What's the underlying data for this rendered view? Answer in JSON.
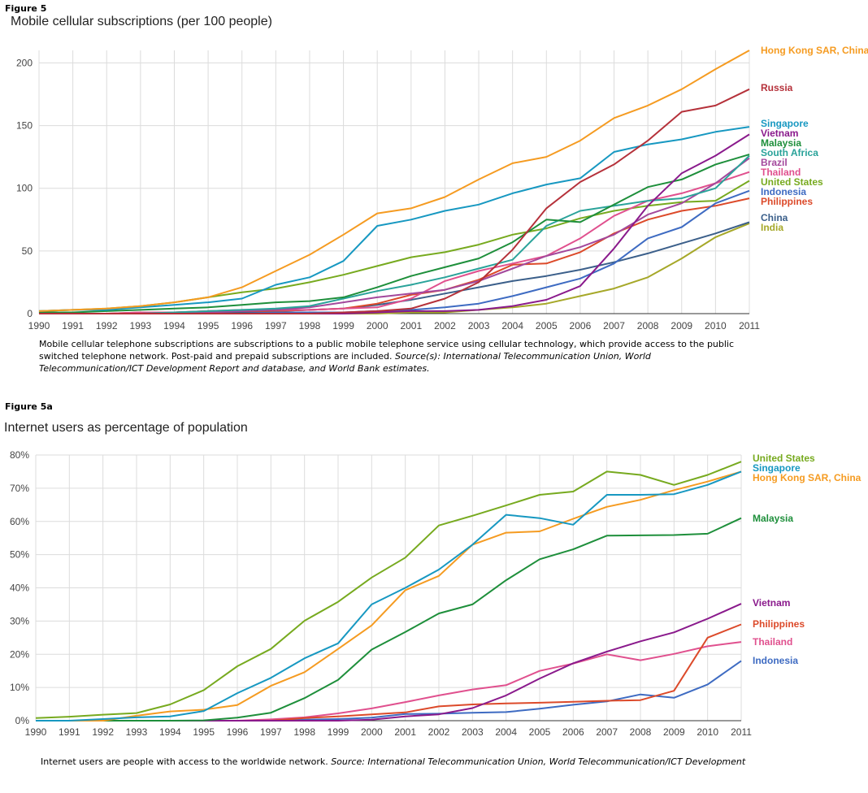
{
  "figure5": {
    "fig_label": "Figure 5",
    "title": "Mobile cellular subscriptions (per 100 people)",
    "note_text": "Mobile cellular telephone subscriptions are subscriptions to a public mobile telephone service using cellular technology, which provide access to the public switched telephone network. Post-paid and prepaid subscriptions are included. ",
    "note_source": "Source(s): International Telecommunication Union, World Telecommunication/ICT Development Report and database, and World Bank estimates."
  },
  "figure5a": {
    "fig_label": "Figure 5a",
    "title": "Internet users as percentage of population",
    "note_text": "Internet users are people with access to the worldwide network. ",
    "note_source": "Source: International Telecommunication Union, World Telecommunication/ICT Development"
  },
  "chart_data": [
    {
      "type": "line",
      "title": "Mobile cellular subscriptions (per 100 people)",
      "xlabel": "",
      "ylabel": "",
      "x": [
        1990,
        1991,
        1992,
        1993,
        1994,
        1995,
        1996,
        1997,
        1998,
        1999,
        2000,
        2001,
        2002,
        2003,
        2004,
        2005,
        2006,
        2007,
        2008,
        2009,
        2010,
        2011
      ],
      "ylim": [
        0,
        210
      ],
      "yticks": [
        0,
        50,
        100,
        150,
        200
      ],
      "ytick_labels": [
        "0",
        "50",
        "100",
        "150",
        "200"
      ],
      "grid": true,
      "legend": "right",
      "series": [
        {
          "name": "Hong Kong SAR, China",
          "color": "#f59b21",
          "values": [
            2,
            3,
            4,
            6,
            9,
            13,
            21,
            34,
            47,
            63,
            80,
            84,
            93,
            107,
            120,
            125,
            138,
            156,
            166,
            179,
            195,
            210
          ]
        },
        {
          "name": "Russia",
          "color": "#b5313a",
          "values": [
            0,
            0,
            0,
            0,
            0,
            0,
            0,
            0,
            0,
            1,
            2,
            4,
            12,
            25,
            51,
            84,
            105,
            119,
            138,
            161,
            166,
            179
          ]
        },
        {
          "name": "Singapore",
          "color": "#1798c1",
          "values": [
            2,
            3,
            3,
            5,
            7,
            9,
            12,
            23,
            29,
            42,
            70,
            75,
            82,
            87,
            96,
            103,
            108,
            129,
            135,
            139,
            145,
            149
          ]
        },
        {
          "name": "Vietnam",
          "color": "#8a1a8c",
          "values": [
            0,
            0,
            0,
            0,
            0,
            0,
            0,
            0,
            0,
            0,
            1,
            2,
            2,
            3,
            6,
            11,
            22,
            52,
            86,
            112,
            126,
            143
          ]
        },
        {
          "name": "Malaysia",
          "color": "#1e8f3b",
          "values": [
            1,
            1,
            2,
            3,
            4,
            5,
            7,
            9,
            10,
            13,
            21,
            30,
            37,
            44,
            57,
            75,
            73,
            87,
            101,
            107,
            119,
            127
          ]
        },
        {
          "name": "South Africa",
          "color": "#2aa39a",
          "values": [
            0,
            0,
            0,
            0,
            1,
            2,
            3,
            4,
            6,
            12,
            18,
            23,
            29,
            36,
            43,
            70,
            82,
            86,
            90,
            92,
            100,
            126
          ]
        },
        {
          "name": "Brazil",
          "color": "#a3489c",
          "values": [
            0,
            0,
            0,
            0,
            1,
            1,
            2,
            3,
            5,
            9,
            13,
            16,
            19,
            26,
            36,
            46,
            53,
            63,
            79,
            88,
            104,
            124
          ]
        },
        {
          "name": "Thailand",
          "color": "#e0508e",
          "values": [
            0,
            0,
            0,
            1,
            1,
            2,
            3,
            3,
            3,
            4,
            5,
            12,
            26,
            34,
            40,
            46,
            60,
            78,
            90,
            96,
            104,
            113
          ]
        },
        {
          "name": "United States",
          "color": "#77aa1f",
          "values": [
            2,
            3,
            4,
            6,
            9,
            13,
            17,
            20,
            25,
            31,
            38,
            45,
            49,
            55,
            63,
            68,
            76,
            82,
            86,
            89,
            90,
            106
          ]
        },
        {
          "name": "Indonesia",
          "color": "#3e6bc2",
          "values": [
            0,
            0,
            0,
            0,
            0,
            0,
            0,
            1,
            1,
            1,
            2,
            3,
            5,
            8,
            14,
            21,
            28,
            40,
            60,
            69,
            88,
            98
          ]
        },
        {
          "name": "Philippines",
          "color": "#dc4a2a",
          "values": [
            0,
            0,
            0,
            1,
            1,
            2,
            2,
            2,
            3,
            4,
            8,
            15,
            19,
            27,
            39,
            40,
            49,
            64,
            75,
            82,
            86,
            92
          ]
        },
        {
          "name": "China",
          "color": "#3b5f8a",
          "values": [
            0,
            0,
            0,
            0,
            0,
            1,
            1,
            2,
            3,
            4,
            7,
            11,
            16,
            21,
            26,
            30,
            35,
            41,
            48,
            56,
            64,
            73
          ]
        },
        {
          "name": "India",
          "color": "#a6a829",
          "values": [
            0,
            0,
            0,
            0,
            0,
            0,
            0,
            0,
            0,
            0,
            0,
            1,
            1,
            3,
            5,
            8,
            14,
            20,
            29,
            44,
            61,
            72
          ]
        }
      ]
    },
    {
      "type": "line",
      "title": "Internet users as percentage of population",
      "xlabel": "",
      "ylabel": "",
      "x": [
        1990,
        1991,
        1992,
        1993,
        1994,
        1995,
        1996,
        1997,
        1998,
        1999,
        2000,
        2001,
        2002,
        2003,
        2004,
        2005,
        2006,
        2007,
        2008,
        2009,
        2010,
        2011
      ],
      "ylim": [
        0,
        80
      ],
      "yticks": [
        0,
        10,
        20,
        30,
        40,
        50,
        60,
        70,
        80
      ],
      "ytick_labels": [
        "0%",
        "10%",
        "20%",
        "30%",
        "40%",
        "50%",
        "60%",
        "70%",
        "80%"
      ],
      "grid": true,
      "legend": "right",
      "series": [
        {
          "name": "United States",
          "color": "#77aa1f",
          "values": [
            0.8,
            1.2,
            1.8,
            2.3,
            4.9,
            9.2,
            16.4,
            21.6,
            30.1,
            35.8,
            43.1,
            49.1,
            58.8,
            61.7,
            64.8,
            68,
            69,
            75,
            74,
            71,
            74,
            78
          ]
        },
        {
          "name": "Singapore",
          "color": "#1798c1",
          "values": [
            0,
            0,
            0.5,
            1,
            1.3,
            2.9,
            8.3,
            12.9,
            18.8,
            23.3,
            35,
            40,
            45.5,
            53,
            62,
            61,
            59,
            68,
            68,
            68.2,
            71,
            75
          ]
        },
        {
          "name": "Hong Kong SAR, China",
          "color": "#f59b21",
          "values": [
            0,
            0,
            0,
            1.5,
            2.8,
            3.3,
            4.7,
            10.5,
            14.6,
            21.6,
            28.7,
            39.3,
            43.6,
            53,
            56.6,
            57,
            60.8,
            64.4,
            66.5,
            69.4,
            72,
            75
          ]
        },
        {
          "name": "Malaysia",
          "color": "#1e8f3b",
          "values": [
            0,
            0,
            0,
            0,
            0,
            0.1,
            0.9,
            2.4,
            6.8,
            12.3,
            21.4,
            26.7,
            32.3,
            35,
            42.3,
            48.6,
            51.6,
            55.7,
            55.8,
            55.9,
            56.3,
            61
          ]
        },
        {
          "name": "Vietnam",
          "color": "#8a1a8c",
          "values": [
            0,
            0,
            0,
            0,
            0,
            0,
            0,
            0,
            0,
            0,
            0.3,
            1.3,
            1.9,
            3.8,
            7.6,
            12.7,
            17.3,
            20.8,
            23.9,
            26.6,
            30.7,
            35.2
          ]
        },
        {
          "name": "Philippines",
          "color": "#dc4a2a",
          "values": [
            0,
            0,
            0,
            0,
            0,
            0,
            0,
            0,
            0.8,
            1.3,
            1.9,
            2.5,
            4.3,
            4.9,
            5.2,
            5.4,
            5.7,
            6,
            6.2,
            9,
            25,
            29
          ]
        },
        {
          "name": "Thailand",
          "color": "#e0508e",
          "values": [
            0,
            0,
            0,
            0,
            0,
            0,
            0,
            0.4,
            1,
            2.2,
            3.7,
            5.6,
            7.6,
            9.4,
            10.7,
            15,
            17.2,
            20,
            18.2,
            20.1,
            22.4,
            23.7
          ]
        },
        {
          "name": "Indonesia",
          "color": "#3e6bc2",
          "values": [
            0,
            0,
            0,
            0,
            0,
            0,
            0,
            0,
            0.3,
            0.5,
            0.9,
            2,
            2.1,
            2.4,
            2.6,
            3.6,
            4.8,
            5.8,
            7.9,
            6.9,
            10.9,
            18
          ]
        }
      ]
    }
  ]
}
